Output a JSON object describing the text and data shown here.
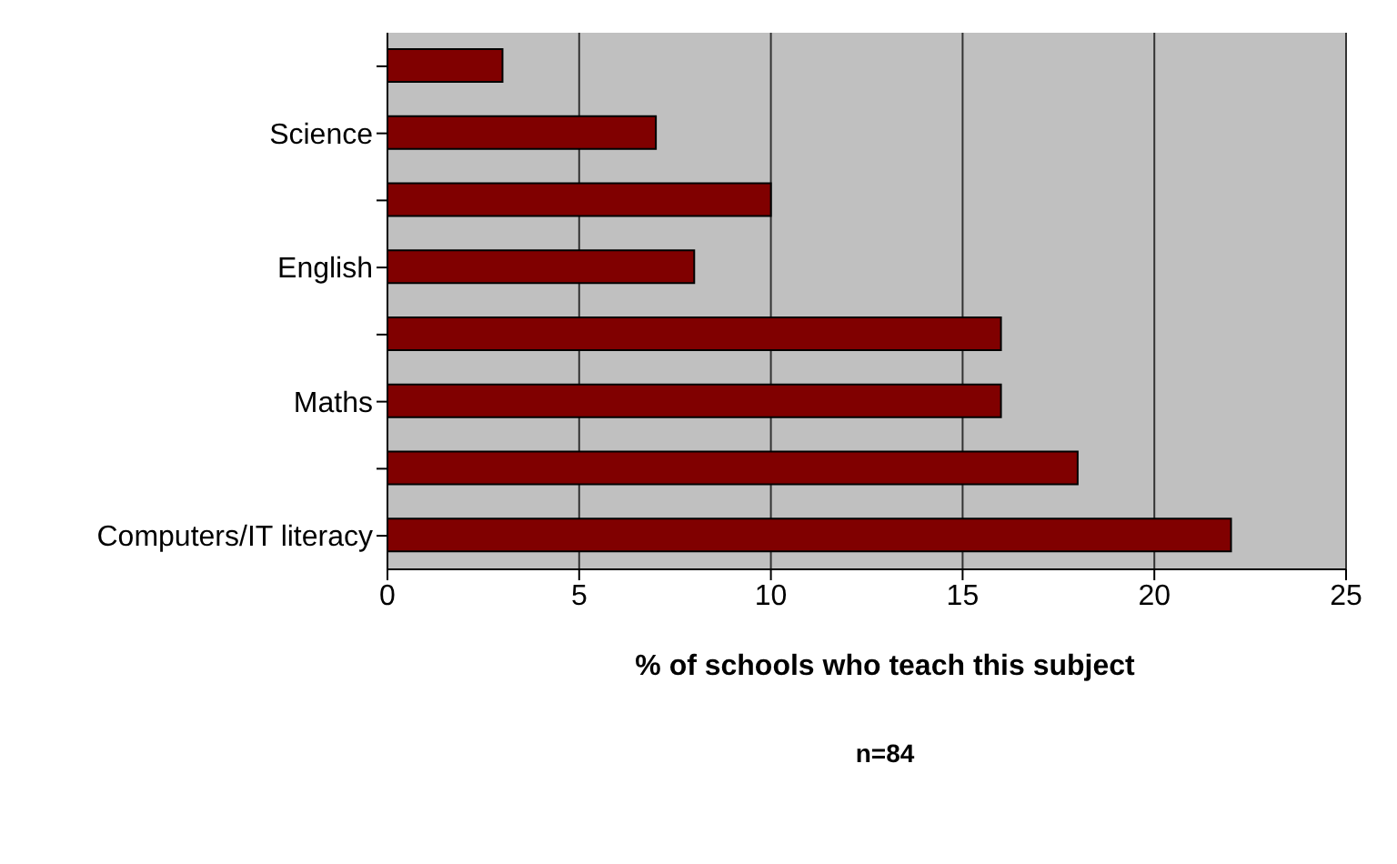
{
  "chart_data": {
    "type": "bar",
    "orientation": "horizontal",
    "categories": [
      null,
      "Science",
      null,
      "English",
      null,
      "Maths",
      null,
      "Computers/IT literacy"
    ],
    "values": [
      3,
      7,
      10,
      8,
      16,
      16,
      18,
      22
    ],
    "color": "#800000",
    "xlim": [
      0,
      25
    ],
    "xticks": [
      0,
      5,
      10,
      15,
      20,
      25
    ],
    "xlabel": "% of schools who teach this subject",
    "annotations": [
      "n=84"
    ],
    "grid": "x",
    "legend": false
  }
}
